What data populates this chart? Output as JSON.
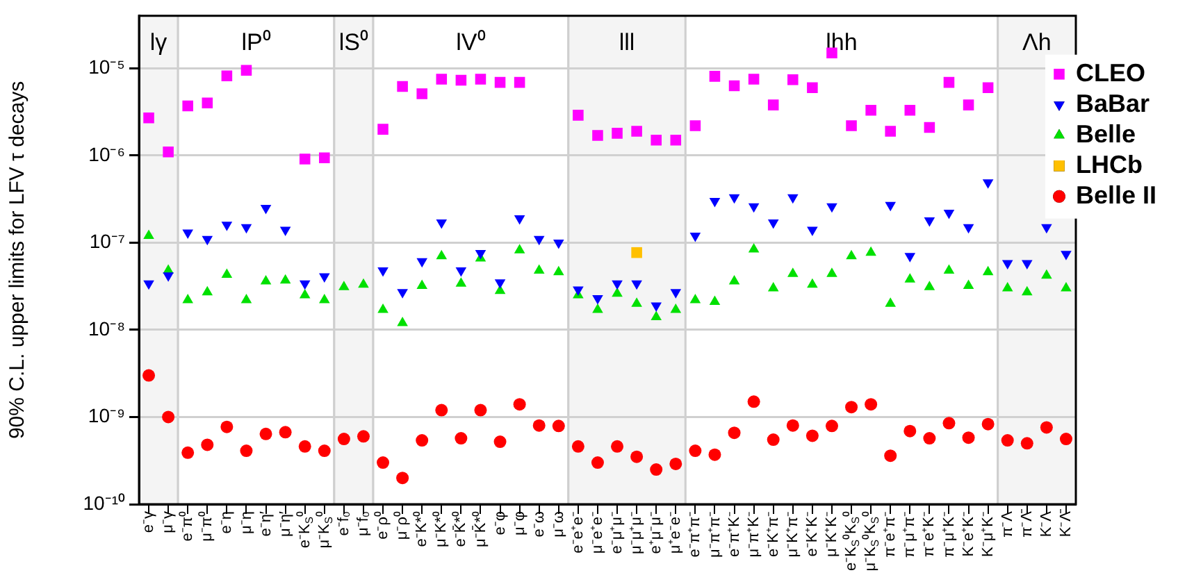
{
  "chart_data": {
    "type": "scatter",
    "ylabel": "90% C.L. upper limits for LFV τ decays",
    "categories": [
      "e⁻γ",
      "μ⁻γ",
      "e⁻π⁰",
      "μ⁻π⁰",
      "e⁻η",
      "μ⁻η",
      "e⁻η′",
      "μ⁻η′",
      "e⁻K$_{S}$⁰",
      "μ⁻K$_{S}$⁰",
      "e⁻f₀",
      "μ⁻f₀",
      "e⁻ρ⁰",
      "μ⁻ρ⁰",
      "e⁻K*⁰",
      "μ⁻K*⁰",
      "e⁻K̄*⁰",
      "μ⁻K̄*⁰",
      "e⁻φ",
      "μ⁻φ",
      "e⁻ω",
      "μ⁻ω",
      "e⁻e⁺e⁻",
      "μ⁻e⁺e⁻",
      "e⁻μ⁺μ⁻",
      "μ⁻μ⁺μ⁻",
      "e⁺μ⁻μ⁻",
      "μ⁺e⁻e⁻",
      "e⁻π⁺π⁻",
      "μ⁻π⁺π⁻",
      "e⁻π⁺K⁻",
      "μ⁻π⁺K⁻",
      "e⁻K⁺π⁻",
      "μ⁻K⁺π⁻",
      "e⁻K⁺K⁻",
      "μ⁻K⁺K⁻",
      "e⁻K$_{S}$⁰K$_{S}$⁰",
      "μ⁻K$_{S}$⁰K$_{S}$⁰",
      "π⁻e⁺π⁻",
      "π⁻μ⁺π⁻",
      "π⁻e⁺K⁻",
      "π⁻μ⁺K⁻",
      "K⁻e⁺K⁻",
      "K⁻μ⁺K⁻",
      "π⁻Λ",
      "π⁻Λ̄",
      "K⁻Λ",
      "K⁻Λ̄"
    ],
    "series": [
      {
        "name": "CLEO",
        "color": "#ff00ff",
        "marker": "square",
        "values": [
          2.7e-06,
          1.1e-06,
          3.7e-06,
          4e-06,
          8.2e-06,
          9.5e-06,
          null,
          null,
          9.1e-07,
          9.4e-07,
          null,
          null,
          2e-06,
          6.2e-06,
          5.1e-06,
          7.5e-06,
          7.3e-06,
          7.5e-06,
          6.9e-06,
          6.9e-06,
          null,
          null,
          2.9e-06,
          1.7e-06,
          1.8e-06,
          1.9e-06,
          1.5e-06,
          1.5e-06,
          2.2e-06,
          8.1e-06,
          6.3e-06,
          7.5e-06,
          3.8e-06,
          7.4e-06,
          6e-06,
          1.5e-05,
          2.2e-06,
          3.3e-06,
          1.9e-06,
          3.3e-06,
          2.1e-06,
          6.9e-06,
          3.8e-06,
          6e-06,
          null,
          null,
          null,
          null
        ]
      },
      {
        "name": "BaBar",
        "color": "#0000ff",
        "marker": "triangle-down",
        "values": [
          3.4e-08,
          4.2e-08,
          1.3e-07,
          1.1e-07,
          1.6e-07,
          1.5e-07,
          2.5e-07,
          1.4e-07,
          3.4e-08,
          4.1e-08,
          null,
          null,
          4.8e-08,
          2.7e-08,
          6.1e-08,
          1.7e-07,
          4.8e-08,
          7.6e-08,
          3.5e-08,
          1.9e-07,
          1.1e-07,
          1e-07,
          2.9e-08,
          2.3e-08,
          3.4e-08,
          3.4e-08,
          1.9e-08,
          2.7e-08,
          1.2e-07,
          3e-07,
          3.3e-07,
          2.6e-07,
          1.7e-07,
          3.3e-07,
          1.4e-07,
          2.6e-07,
          null,
          null,
          2.7e-07,
          7e-08,
          1.8e-07,
          2.2e-07,
          1.5e-07,
          4.9e-07,
          5.8e-08,
          5.8e-08,
          1.5e-07,
          7.4e-08
        ]
      },
      {
        "name": "Belle",
        "color": "#00e000",
        "marker": "triangle",
        "values": [
          1.2e-07,
          4.8e-08,
          2.2e-08,
          2.7e-08,
          4.3e-08,
          2.2e-08,
          3.6e-08,
          3.7e-08,
          2.5e-08,
          2.2e-08,
          3.1e-08,
          3.3e-08,
          1.7e-08,
          1.2e-08,
          3.2e-08,
          7e-08,
          3.4e-08,
          6.6e-08,
          2.8e-08,
          8.2e-08,
          4.8e-08,
          4.6e-08,
          2.5e-08,
          1.7e-08,
          2.6e-08,
          2e-08,
          1.4e-08,
          1.7e-08,
          2.2e-08,
          2.1e-08,
          3.6e-08,
          8.4e-08,
          3e-08,
          4.4e-08,
          3.3e-08,
          4.4e-08,
          7e-08,
          7.7e-08,
          2e-08,
          3.8e-08,
          3.1e-08,
          4.8e-08,
          3.2e-08,
          4.6e-08,
          3e-08,
          2.7e-08,
          4.2e-08,
          3e-08
        ]
      },
      {
        "name": "LHCb",
        "color": "#ffc000",
        "marker": "square",
        "values": [
          null,
          null,
          null,
          null,
          null,
          null,
          null,
          null,
          null,
          null,
          null,
          null,
          null,
          null,
          null,
          null,
          null,
          null,
          null,
          null,
          null,
          null,
          null,
          null,
          null,
          7.7e-08,
          null,
          null,
          null,
          null,
          null,
          null,
          null,
          null,
          null,
          null,
          null,
          null,
          null,
          null,
          null,
          null,
          null,
          null,
          null,
          null,
          null,
          null
        ]
      },
      {
        "name": "Belle II",
        "color": "#ff0000",
        "marker": "circle",
        "values": [
          3e-09,
          1e-09,
          3.9e-10,
          4.8e-10,
          7.7e-10,
          4.1e-10,
          6.4e-10,
          6.7e-10,
          4.6e-10,
          4.1e-10,
          5.6e-10,
          6e-10,
          3e-10,
          2e-10,
          5.4e-10,
          1.2e-09,
          5.7e-10,
          1.2e-09,
          5.2e-10,
          1.4e-09,
          8e-10,
          7.9e-10,
          4.6e-10,
          3e-10,
          4.6e-10,
          3.5e-10,
          2.5e-10,
          2.9e-10,
          4.1e-10,
          3.7e-10,
          6.6e-10,
          1.5e-09,
          5.5e-10,
          8e-10,
          6.1e-10,
          7.9e-10,
          1.3e-09,
          1.4e-09,
          3.6e-10,
          6.9e-10,
          5.7e-10,
          8.5e-10,
          5.8e-10,
          8.3e-10,
          5.4e-10,
          5e-10,
          7.6e-10,
          5.6e-10
        ]
      }
    ],
    "bands": [
      {
        "axis": "x",
        "from": "e⁻γ",
        "to": "μ⁻γ",
        "label": "lγ",
        "color": "#f4f4f4"
      },
      {
        "axis": "x",
        "from": "e⁻π⁰",
        "to": "μ⁻K$_{S}$⁰",
        "label": "lP⁰",
        "color": "#ffffff"
      },
      {
        "axis": "x",
        "from": "e⁻f₀",
        "to": "μ⁻f₀",
        "label": "lS⁰",
        "color": "#f4f4f4"
      },
      {
        "axis": "x",
        "from": "e⁻ρ⁰",
        "to": "μ⁻ω",
        "label": "lV⁰",
        "color": "#ffffff"
      },
      {
        "axis": "x",
        "from": "e⁻e⁺e⁻",
        "to": "μ⁺e⁻e⁻",
        "label": "lll",
        "color": "#f4f4f4"
      },
      {
        "axis": "x",
        "from": "e⁻π⁺π⁻",
        "to": "K⁻μ⁺K⁻",
        "label": "lhh",
        "color": "#ffffff"
      },
      {
        "axis": "x",
        "from": "π⁻Λ",
        "to": "K⁻Λ̄",
        "label": "Λh",
        "color": "#f4f4f4"
      }
    ],
    "log": true,
    "ylim": [
      1e-10,
      4e-05
    ],
    "yticks": [
      {
        "value": 1e-10,
        "label": "10⁻¹⁰"
      },
      {
        "value": 1e-09,
        "label": "10⁻⁹"
      },
      {
        "value": 1e-08,
        "label": "10⁻⁸"
      },
      {
        "value": 1e-07,
        "label": "10⁻⁷"
      },
      {
        "value": 1e-06,
        "label": "10⁻⁶"
      },
      {
        "value": 1e-05,
        "label": "10⁻⁵"
      }
    ],
    "grid": "y",
    "legend": "top right"
  }
}
